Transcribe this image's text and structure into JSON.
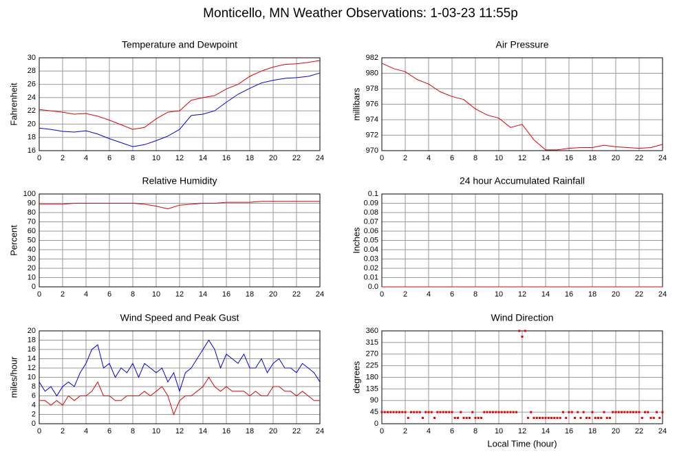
{
  "title": "Monticello, MN Weather Observations: 1-03-23 11:55p",
  "chart_data": [
    {
      "type": "line",
      "title": "Temperature and Dewpoint",
      "ylabel": "Fahrenheit",
      "xlim": [
        0,
        24
      ],
      "xticks": [
        0,
        2,
        4,
        6,
        8,
        10,
        12,
        14,
        16,
        18,
        20,
        22,
        24
      ],
      "ylim": [
        16,
        30
      ],
      "yticks": [
        16,
        18,
        20,
        22,
        24,
        26,
        28,
        30
      ],
      "grid": true,
      "x": [
        0,
        1,
        2,
        3,
        4,
        5,
        6,
        7,
        8,
        9,
        10,
        11,
        12,
        13,
        14,
        15,
        16,
        17,
        18,
        19,
        20,
        21,
        22,
        23,
        24
      ],
      "series": [
        {
          "color": "#e00000",
          "values": [
            22.2,
            22.0,
            21.8,
            21.5,
            21.6,
            21.2,
            20.6,
            19.9,
            19.2,
            19.5,
            20.8,
            21.8,
            22.0,
            23.6,
            24.0,
            24.3,
            25.3,
            26.0,
            27.2,
            28.0,
            28.6,
            29.0,
            29.1,
            29.3,
            29.6
          ]
        },
        {
          "color": "#0000e0",
          "values": [
            19.4,
            19.2,
            18.9,
            18.8,
            19.0,
            18.5,
            17.8,
            17.2,
            16.6,
            16.9,
            17.5,
            18.2,
            19.2,
            21.3,
            21.5,
            22.0,
            23.3,
            24.5,
            25.4,
            26.2,
            26.6,
            26.9,
            27.0,
            27.2,
            27.7
          ]
        }
      ]
    },
    {
      "type": "line",
      "title": "Air Pressure",
      "ylabel": "millibars",
      "xlim": [
        0,
        24
      ],
      "xticks": [
        0,
        2,
        4,
        6,
        8,
        10,
        12,
        14,
        16,
        18,
        20,
        22,
        24
      ],
      "ylim": [
        970,
        982
      ],
      "yticks": [
        970,
        972,
        974,
        976,
        978,
        980,
        982
      ],
      "grid": true,
      "x": [
        0,
        1,
        2,
        3,
        4,
        5,
        6,
        7,
        8,
        9,
        10,
        11,
        12,
        13,
        14,
        15,
        16,
        17,
        18,
        19,
        20,
        21,
        22,
        23,
        24
      ],
      "series": [
        {
          "color": "#e00000",
          "values": [
            981.3,
            980.6,
            980.2,
            979.2,
            978.6,
            977.6,
            977.0,
            976.6,
            975.4,
            974.6,
            974.2,
            973.0,
            973.4,
            971.4,
            970.1,
            970.1,
            970.3,
            970.4,
            970.4,
            970.7,
            970.5,
            970.4,
            970.3,
            970.4,
            970.8
          ]
        }
      ]
    },
    {
      "type": "line",
      "title": "Relative Humidity",
      "ylabel": "Percent",
      "xlim": [
        0,
        24
      ],
      "xticks": [
        0,
        2,
        4,
        6,
        8,
        10,
        12,
        14,
        16,
        18,
        20,
        22,
        24
      ],
      "ylim": [
        0,
        100
      ],
      "yticks": [
        0,
        10,
        20,
        30,
        40,
        50,
        60,
        70,
        80,
        90,
        100
      ],
      "grid": true,
      "x": [
        0,
        1,
        2,
        3,
        4,
        5,
        6,
        7,
        8,
        9,
        10,
        11,
        12,
        13,
        14,
        15,
        16,
        17,
        18,
        19,
        20,
        21,
        22,
        23,
        24
      ],
      "series": [
        {
          "color": "#e00000",
          "values": [
            89,
            89,
            89,
            90,
            90,
            90,
            90,
            90,
            90,
            89,
            87,
            84,
            88,
            89,
            90,
            90,
            91,
            91,
            91,
            92,
            92,
            92,
            92,
            92,
            92
          ]
        }
      ]
    },
    {
      "type": "line",
      "title": "24 hour Accumulated Rainfall",
      "ylabel": "Inches",
      "xlim": [
        0,
        24
      ],
      "xticks": [
        0,
        2,
        4,
        6,
        8,
        10,
        12,
        14,
        16,
        18,
        20,
        22,
        24
      ],
      "ylim": [
        0,
        0.1
      ],
      "yticks": [
        {
          "value": 0,
          "label": "0.0"
        },
        0.01,
        0.02,
        0.03,
        0.04,
        0.05,
        0.06,
        0.07,
        0.08,
        0.09,
        0.1
      ],
      "grid": true,
      "x": [
        0,
        1,
        2,
        3,
        4,
        5,
        6,
        7,
        8,
        9,
        10,
        11,
        12,
        13,
        14,
        15,
        16,
        17,
        18,
        19,
        20,
        21,
        22,
        23,
        24
      ],
      "series": [
        {
          "color": "#e00000",
          "values": [
            0,
            0,
            0,
            0,
            0,
            0,
            0,
            0,
            0,
            0,
            0,
            0,
            0,
            0,
            0,
            0,
            0,
            0,
            0,
            0,
            0,
            0,
            0,
            0,
            0
          ]
        }
      ]
    },
    {
      "type": "line",
      "title": "Wind Speed and Peak Gust",
      "ylabel": "miles/hour",
      "xlim": [
        0,
        24
      ],
      "xticks": [
        0,
        2,
        4,
        6,
        8,
        10,
        12,
        14,
        16,
        18,
        20,
        22,
        24
      ],
      "ylim": [
        0,
        20
      ],
      "yticks": [
        0,
        2,
        4,
        6,
        8,
        10,
        12,
        14,
        16,
        18,
        20
      ],
      "grid": true,
      "x": [
        0,
        0.5,
        1,
        1.5,
        2,
        2.5,
        3,
        3.5,
        4,
        4.5,
        5,
        5.5,
        6,
        6.5,
        7,
        7.5,
        8,
        8.5,
        9,
        9.5,
        10,
        10.5,
        11,
        11.5,
        12,
        12.5,
        13,
        13.5,
        14,
        14.5,
        15,
        15.5,
        16,
        16.5,
        17,
        17.5,
        18,
        18.5,
        19,
        19.5,
        20,
        20.5,
        21,
        21.5,
        22,
        22.5,
        23,
        23.5,
        24
      ],
      "series": [
        {
          "color": "#0000e0",
          "values": [
            9,
            7,
            8,
            6,
            8,
            9,
            8,
            11,
            13,
            16,
            17,
            12,
            13,
            10,
            12,
            11,
            13,
            10,
            13,
            12,
            11,
            12,
            9,
            11,
            7,
            11,
            12,
            14,
            16,
            18,
            16,
            12,
            15,
            14,
            13,
            15,
            12,
            12,
            14,
            11,
            13,
            14,
            12,
            12,
            11,
            13,
            12,
            11,
            9
          ]
        },
        {
          "color": "#e00000",
          "values": [
            5,
            5,
            4,
            5,
            4,
            6,
            5,
            6,
            6,
            7,
            9,
            6,
            6,
            5,
            5,
            6,
            6,
            6,
            7,
            6,
            7,
            8,
            6,
            2,
            5,
            6,
            6,
            7,
            8,
            10,
            8,
            7,
            8,
            7,
            7,
            7,
            6,
            7,
            6,
            6,
            8,
            8,
            7,
            7,
            6,
            7,
            6,
            5,
            5
          ]
        }
      ]
    },
    {
      "type": "scatter",
      "title": "Wind Direction",
      "ylabel": "degrees",
      "xlabel": "Local Time (hour)",
      "xlim": [
        0,
        24
      ],
      "xticks": [
        0,
        2,
        4,
        6,
        8,
        10,
        12,
        14,
        16,
        18,
        20,
        22,
        24
      ],
      "ylim": [
        0,
        360
      ],
      "yticks": [
        0,
        45,
        90,
        135,
        180,
        225,
        270,
        315,
        360
      ],
      "grid": true,
      "x": [
        0,
        0.25,
        0.5,
        0.75,
        1,
        1.25,
        1.5,
        1.75,
        2,
        2.25,
        2.5,
        2.75,
        3,
        3.25,
        3.5,
        3.75,
        4,
        4.25,
        4.5,
        4.75,
        5,
        5.25,
        5.5,
        5.75,
        6,
        6.25,
        6.5,
        6.75,
        7,
        7.25,
        7.5,
        7.75,
        8,
        8.25,
        8.5,
        8.75,
        9,
        9.25,
        9.5,
        9.75,
        10,
        10.25,
        10.5,
        10.75,
        11,
        11.25,
        11.5,
        11.75,
        12,
        12.25,
        12.5,
        12.75,
        13,
        13.25,
        13.5,
        13.75,
        14,
        14.25,
        14.5,
        14.75,
        15,
        15.25,
        15.5,
        15.75,
        16,
        16.25,
        16.5,
        16.75,
        17,
        17.25,
        17.5,
        17.75,
        18,
        18.25,
        18.5,
        18.75,
        19,
        19.25,
        19.5,
        19.75,
        20,
        20.25,
        20.5,
        20.75,
        21,
        21.25,
        21.5,
        21.75,
        22,
        22.25,
        22.5,
        22.75,
        23,
        23.25,
        23.5,
        23.75,
        24
      ],
      "series": [
        {
          "color": "#e00000",
          "values": [
            45,
            45,
            45,
            45,
            45,
            45,
            45,
            45,
            45,
            22.5,
            45,
            45,
            45,
            45,
            22.5,
            45,
            45,
            45,
            22.5,
            45,
            45,
            45,
            45,
            45,
            45,
            22.5,
            22.5,
            45,
            22.5,
            22.5,
            22.5,
            45,
            22.5,
            22.5,
            22.5,
            45,
            45,
            45,
            45,
            45,
            45,
            45,
            45,
            45,
            45,
            45,
            45,
            360,
            337.5,
            360,
            22.5,
            45,
            22.5,
            22.5,
            22.5,
            22.5,
            22.5,
            22.5,
            22.5,
            22.5,
            22.5,
            22.5,
            45,
            22.5,
            45,
            45,
            22.5,
            45,
            22.5,
            45,
            22.5,
            22.5,
            45,
            22.5,
            22.5,
            22.5,
            45,
            22.5,
            22.5,
            45,
            45,
            45,
            45,
            45,
            45,
            45,
            45,
            45,
            45,
            22.5,
            45,
            45,
            22.5,
            22.5,
            45,
            22.5,
            45
          ]
        }
      ]
    }
  ]
}
